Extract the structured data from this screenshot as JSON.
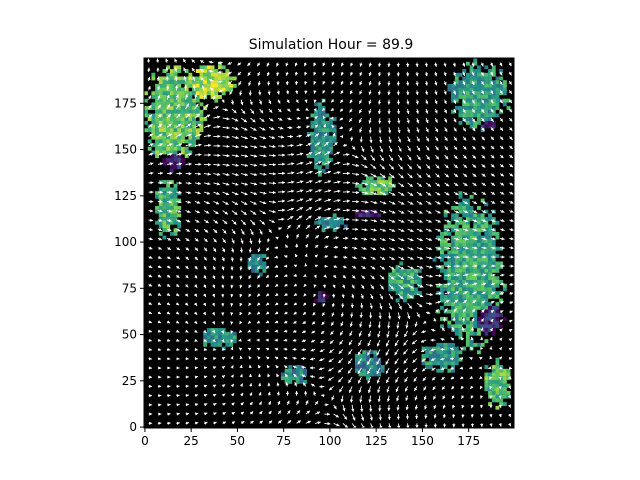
{
  "chart_data": {
    "type": "heatmap",
    "title": "Simulation Hour = 89.9",
    "xlabel": "",
    "ylabel": "",
    "grid": false,
    "xlim": [
      -0.5,
      199.5
    ],
    "ylim": [
      199.5,
      -0.5
    ],
    "x_ticks": [
      0,
      25,
      50,
      75,
      100,
      125,
      150,
      175
    ],
    "y_ticks": [
      0,
      25,
      50,
      75,
      100,
      125,
      150,
      175
    ],
    "x_tick_labels": [
      "0",
      "25",
      "50",
      "75",
      "100",
      "125",
      "150",
      "175"
    ],
    "y_tick_labels": [
      "0",
      "25",
      "50",
      "75",
      "100",
      "125",
      "150",
      "175"
    ],
    "background_color": "#000000",
    "colormap": "viridis",
    "vector_color": "#ffffff",
    "grid_size": 200,
    "quiver_step": 5,
    "regions": [
      {
        "cx": 15,
        "cy": 30,
        "rx": 22,
        "ry": 35,
        "v": 0.72
      },
      {
        "cx": 35,
        "cy": 12,
        "rx": 18,
        "ry": 14,
        "v": 0.85
      },
      {
        "cx": 12,
        "cy": 80,
        "rx": 10,
        "ry": 22,
        "v": 0.65
      },
      {
        "cx": 15,
        "cy": 55,
        "rx": 8,
        "ry": 8,
        "v": 0.08
      },
      {
        "cx": 180,
        "cy": 20,
        "rx": 22,
        "ry": 25,
        "v": 0.55
      },
      {
        "cx": 185,
        "cy": 35,
        "rx": 6,
        "ry": 4,
        "v": 0.05
      },
      {
        "cx": 175,
        "cy": 115,
        "rx": 25,
        "ry": 55,
        "v": 0.6
      },
      {
        "cx": 185,
        "cy": 140,
        "rx": 12,
        "ry": 12,
        "v": 0.1
      },
      {
        "cx": 190,
        "cy": 175,
        "rx": 10,
        "ry": 18,
        "v": 0.7
      },
      {
        "cx": 125,
        "cy": 68,
        "rx": 14,
        "ry": 8,
        "v": 0.7
      },
      {
        "cx": 120,
        "cy": 83,
        "rx": 10,
        "ry": 3,
        "v": 0.08
      },
      {
        "cx": 140,
        "cy": 120,
        "rx": 12,
        "ry": 14,
        "v": 0.6
      },
      {
        "cx": 95,
        "cy": 128,
        "rx": 5,
        "ry": 5,
        "v": 0.05
      },
      {
        "cx": 95,
        "cy": 42,
        "rx": 10,
        "ry": 28,
        "v": 0.5
      },
      {
        "cx": 60,
        "cy": 110,
        "rx": 8,
        "ry": 8,
        "v": 0.45
      },
      {
        "cx": 40,
        "cy": 150,
        "rx": 15,
        "ry": 8,
        "v": 0.5
      },
      {
        "cx": 80,
        "cy": 170,
        "rx": 10,
        "ry": 8,
        "v": 0.45
      },
      {
        "cx": 120,
        "cy": 165,
        "rx": 12,
        "ry": 10,
        "v": 0.45
      },
      {
        "cx": 160,
        "cy": 160,
        "rx": 15,
        "ry": 12,
        "v": 0.5
      },
      {
        "cx": 100,
        "cy": 88,
        "rx": 12,
        "ry": 6,
        "v": 0.45
      }
    ]
  }
}
